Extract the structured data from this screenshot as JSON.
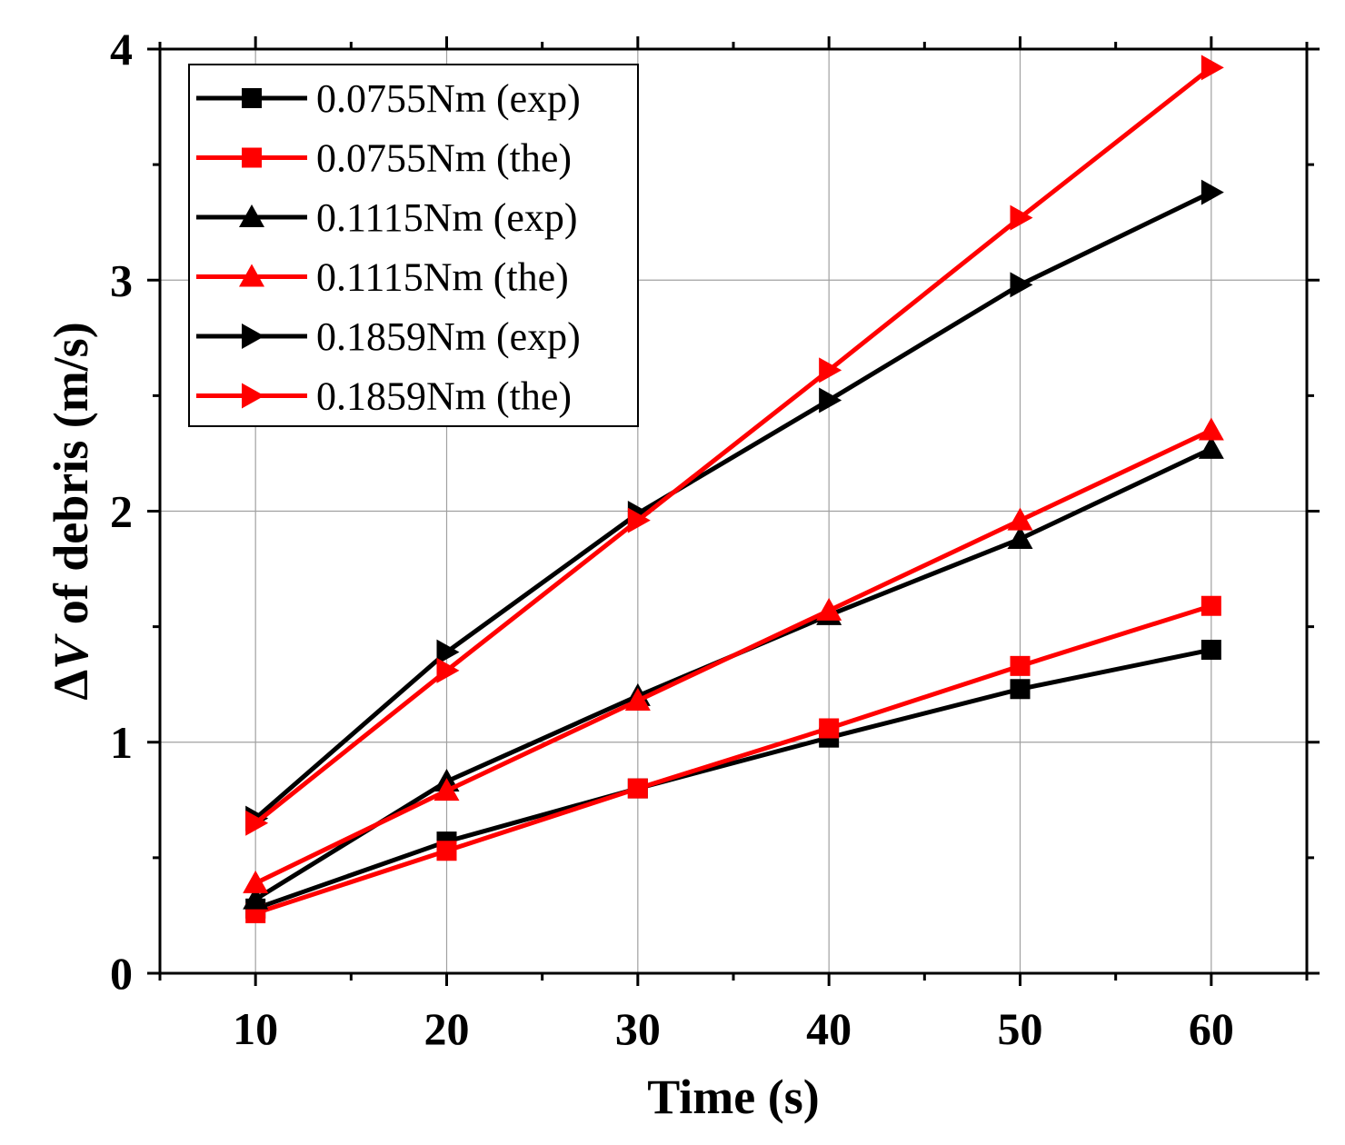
{
  "chart_data": {
    "type": "line",
    "xlabel": "Time (s)",
    "ylabel": "ΔV of debris (m/s)",
    "ylabel_prefix": "Δ",
    "ylabel_var": "V",
    "ylabel_suffix": " of debris (m/s)",
    "xlim": [
      5,
      65
    ],
    "ylim": [
      0,
      4
    ],
    "xticks": [
      10,
      20,
      30,
      40,
      50,
      60
    ],
    "yticks": [
      0,
      1,
      2,
      3,
      4
    ],
    "x_minor_step": 5,
    "y_minor_step": 0.5,
    "grid": true,
    "legend_position": "top-left",
    "x": [
      10,
      20,
      30,
      40,
      50,
      60
    ],
    "series": [
      {
        "name": "0.0755Nm (exp)",
        "color": "#000000",
        "marker": "square",
        "values": [
          0.28,
          0.57,
          0.8,
          1.02,
          1.23,
          1.4
        ]
      },
      {
        "name": "0.0755Nm (the)",
        "color": "#ff0000",
        "marker": "square",
        "values": [
          0.26,
          0.53,
          0.8,
          1.06,
          1.33,
          1.59
        ]
      },
      {
        "name": "0.1115Nm (exp)",
        "color": "#000000",
        "marker": "triangle-up",
        "values": [
          0.32,
          0.83,
          1.2,
          1.55,
          1.88,
          2.27
        ]
      },
      {
        "name": "0.1115Nm (the)",
        "color": "#ff0000",
        "marker": "triangle-up",
        "values": [
          0.39,
          0.79,
          1.18,
          1.57,
          1.96,
          2.35
        ]
      },
      {
        "name": "0.1859Nm (exp)",
        "color": "#000000",
        "marker": "triangle-right",
        "values": [
          0.67,
          1.39,
          1.99,
          2.48,
          2.98,
          3.38
        ]
      },
      {
        "name": "0.1859Nm (the)",
        "color": "#ff0000",
        "marker": "triangle-right",
        "values": [
          0.65,
          1.31,
          1.96,
          2.61,
          3.27,
          3.92
        ]
      }
    ]
  }
}
